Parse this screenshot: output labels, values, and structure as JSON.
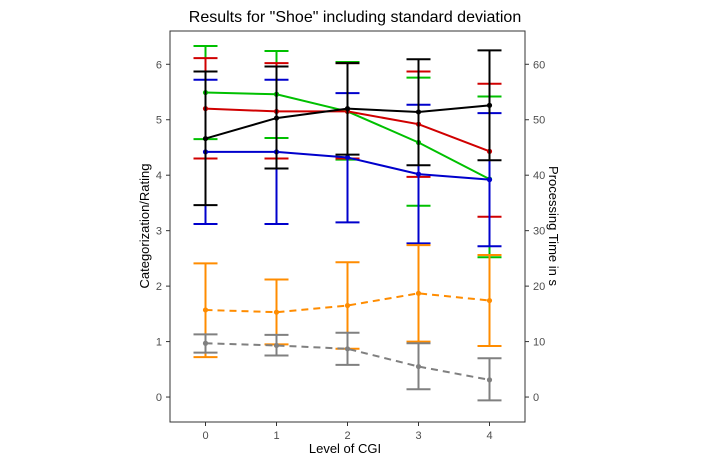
{
  "chart_data": {
    "type": "line",
    "title": "Results for \"Shoe\" including standard deviation",
    "xlabel": "Level of CGI",
    "ylabel": "Categorization/Rating",
    "y2label": "Processing Time in s",
    "x": [
      0,
      1,
      2,
      3,
      4
    ],
    "xlim": [
      -0.5,
      4.5
    ],
    "ylim": [
      -0.45,
      6.6
    ],
    "y2lim": [
      -4.5,
      66
    ],
    "yticks": [
      0,
      1,
      2,
      3,
      4,
      5,
      6
    ],
    "y2ticks": [
      0,
      10,
      20,
      30,
      40,
      50,
      60
    ],
    "grid": false,
    "legend": "none",
    "series": [
      {
        "color": "#00c000",
        "dash": false,
        "mean": [
          5.49,
          5.46,
          5.15,
          4.59,
          3.93
        ],
        "lower": [
          4.65,
          4.67,
          4.28,
          3.45,
          2.52
        ],
        "upper": [
          6.33,
          6.24,
          6.04,
          5.76,
          5.42
        ]
      },
      {
        "color": "#d00000",
        "dash": false,
        "mean": [
          5.2,
          5.15,
          5.15,
          4.92,
          4.43
        ],
        "lower": [
          4.3,
          4.3,
          4.3,
          3.97,
          3.25
        ],
        "upper": [
          6.11,
          6.02,
          6.02,
          5.87,
          5.65
        ]
      },
      {
        "color": "#0000cc",
        "dash": false,
        "mean": [
          4.42,
          4.42,
          4.32,
          4.02,
          3.92
        ],
        "lower": [
          3.12,
          3.12,
          3.15,
          2.77,
          2.72
        ],
        "upper": [
          5.72,
          5.72,
          5.48,
          5.27,
          5.12
        ]
      },
      {
        "color": "#000000",
        "dash": false,
        "mean": [
          4.66,
          5.03,
          5.2,
          5.14,
          5.26
        ],
        "lower": [
          3.46,
          4.12,
          4.37,
          4.18,
          4.27
        ],
        "upper": [
          5.87,
          5.96,
          6.02,
          6.09,
          6.25
        ]
      },
      {
        "color": "#ff8c00",
        "dash": true,
        "mean": [
          1.57,
          1.53,
          1.65,
          1.87,
          1.74
        ],
        "lower": [
          0.72,
          0.95,
          0.87,
          1.0,
          0.92
        ],
        "upper": [
          2.41,
          2.12,
          2.43,
          2.74,
          2.56
        ]
      },
      {
        "color": "#808080",
        "dash": true,
        "mean": [
          0.97,
          0.93,
          0.87,
          0.55,
          0.31
        ],
        "lower": [
          0.8,
          0.75,
          0.58,
          0.14,
          -0.06
        ],
        "upper": [
          1.13,
          1.12,
          1.16,
          0.97,
          0.7
        ]
      }
    ]
  }
}
